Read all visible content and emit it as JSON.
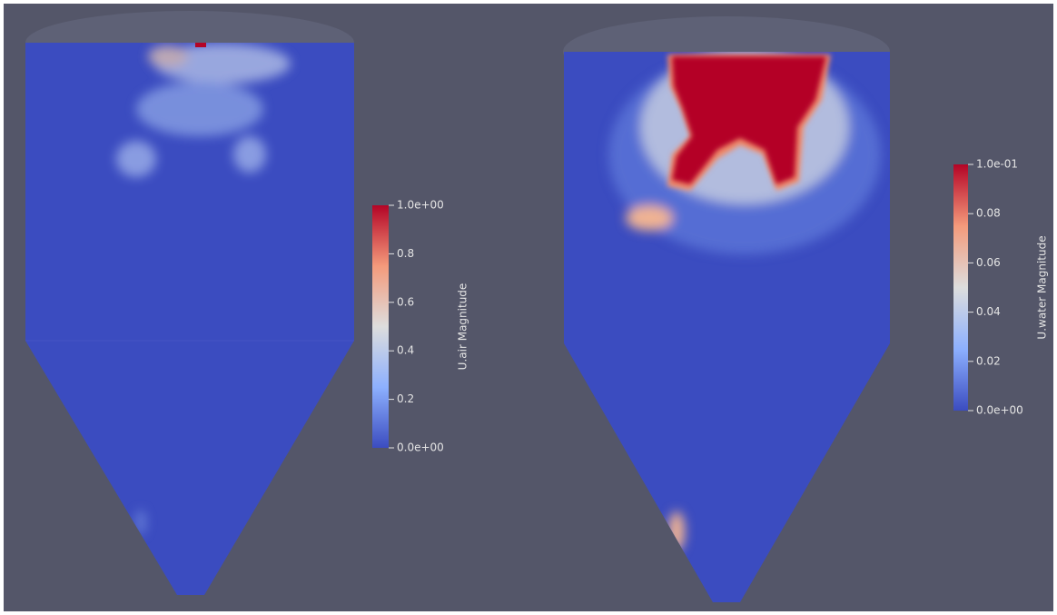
{
  "panels": [
    {
      "colorbar": {
        "title": "U.air Magnitude",
        "ticks": [
          "1.0e+00",
          "0.8",
          "0.6",
          "0.4",
          "0.2",
          "0.0e+00"
        ]
      }
    },
    {
      "colorbar": {
        "title": "U.water Magnitude",
        "ticks": [
          "1.0e-01",
          "0.08",
          "0.06",
          "0.04",
          "0.02",
          "0.0e+00"
        ]
      }
    }
  ]
}
